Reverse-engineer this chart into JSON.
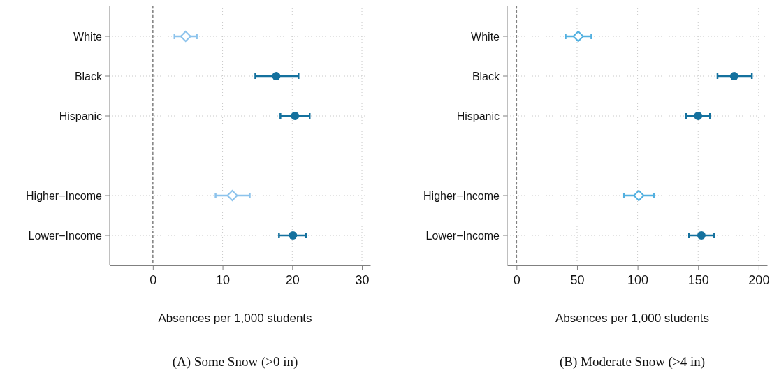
{
  "chart_data": [
    {
      "type": "scatter",
      "title": "(A) Some Snow (>0 in)",
      "xlabel": "Absences per 1,000 students",
      "orientation": "horizontal",
      "categories": [
        "White",
        "Black",
        "Hispanic",
        null,
        "Higher−Income",
        "Lower−Income"
      ],
      "series": [
        {
          "color": "#8cc3ec",
          "marker": "diamond",
          "values": [
            4.7,
            null,
            null,
            null,
            11.4,
            null
          ],
          "errors": [
            [
              3.1,
              6.3
            ],
            null,
            null,
            null,
            [
              9.0,
              13.9
            ],
            null
          ]
        },
        {
          "color": "#14719e",
          "marker": "circle",
          "values": [
            null,
            17.7,
            20.4,
            null,
            null,
            20.1
          ],
          "errors": [
            null,
            [
              14.7,
              20.9
            ],
            [
              18.3,
              22.5
            ],
            null,
            null,
            [
              18.1,
              22.0
            ]
          ]
        }
      ],
      "xlim": [
        -6.2,
        31.2
      ],
      "xticks": [
        0,
        10,
        20,
        30
      ],
      "grid": true,
      "ref_lines": [
        {
          "axis": "x",
          "value": 0,
          "color": "#808080",
          "line_style": "dashed"
        }
      ]
    },
    {
      "type": "scatter",
      "title": "(B) Moderate Snow (>4 in)",
      "xlabel": "Absences per 1,000 students",
      "orientation": "horizontal",
      "categories": [
        "White",
        "Black",
        "Hispanic",
        null,
        "Higher−Income",
        "Lower−Income"
      ],
      "series": [
        {
          "color": "#52b0e0",
          "marker": "diamond",
          "values": [
            51,
            null,
            null,
            null,
            101,
            null
          ],
          "errors": [
            [
              40.5,
              61.8
            ],
            null,
            null,
            null,
            [
              88.8,
              113.4
            ],
            null
          ]
        },
        {
          "color": "#14719e",
          "marker": "circle",
          "values": [
            null,
            179.8,
            150,
            null,
            null,
            152.7
          ],
          "errors": [
            null,
            [
              166,
              194.4
            ],
            [
              139.9,
              159.8
            ],
            null,
            null,
            [
              142.5,
              163.3
            ]
          ]
        }
      ],
      "xlim": [
        -7.7,
        207
      ],
      "xticks": [
        0,
        50,
        100,
        150,
        200
      ],
      "grid": true,
      "ref_lines": [
        {
          "axis": "x",
          "value": 0,
          "color": "#808080",
          "line_style": "dashed"
        }
      ]
    }
  ]
}
